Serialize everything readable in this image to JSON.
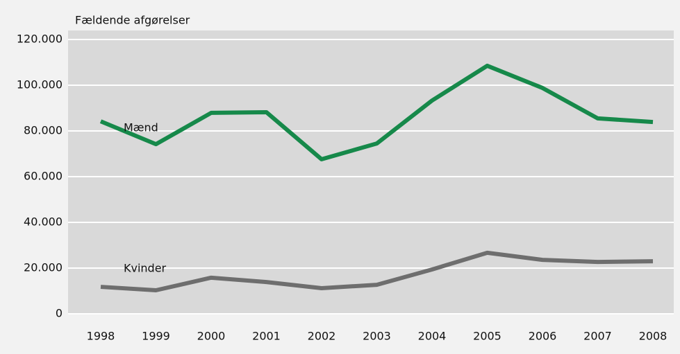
{
  "chart_data": {
    "type": "line",
    "y_label": "Fældende afgørelser",
    "categories": [
      "1998",
      "1999",
      "2000",
      "2001",
      "2002",
      "2003",
      "2004",
      "2005",
      "2006",
      "2007",
      "2008"
    ],
    "series": [
      {
        "name": "Mænd",
        "color": "#16894a",
        "values": [
          84200,
          74200,
          87900,
          88200,
          67600,
          74500,
          93300,
          108500,
          98800,
          85500,
          83900
        ]
      },
      {
        "name": "Kvinder",
        "color": "#6e6e6e",
        "values": [
          11800,
          10300,
          15800,
          13900,
          11200,
          12700,
          19400,
          26700,
          23600,
          22700,
          23000
        ]
      }
    ],
    "ylim": [
      0,
      120000
    ],
    "yticks": [
      0,
      {
        "value": 20000,
        "label": "20.000"
      },
      {
        "value": 40000,
        "label": "40.000"
      },
      {
        "value": 60000,
        "label": "60.000"
      },
      {
        "value": 80000,
        "label": "80.000"
      },
      {
        "value": 100000,
        "label": "100.000"
      },
      {
        "value": 120000,
        "label": "120.000"
      }
    ],
    "grid": true
  }
}
